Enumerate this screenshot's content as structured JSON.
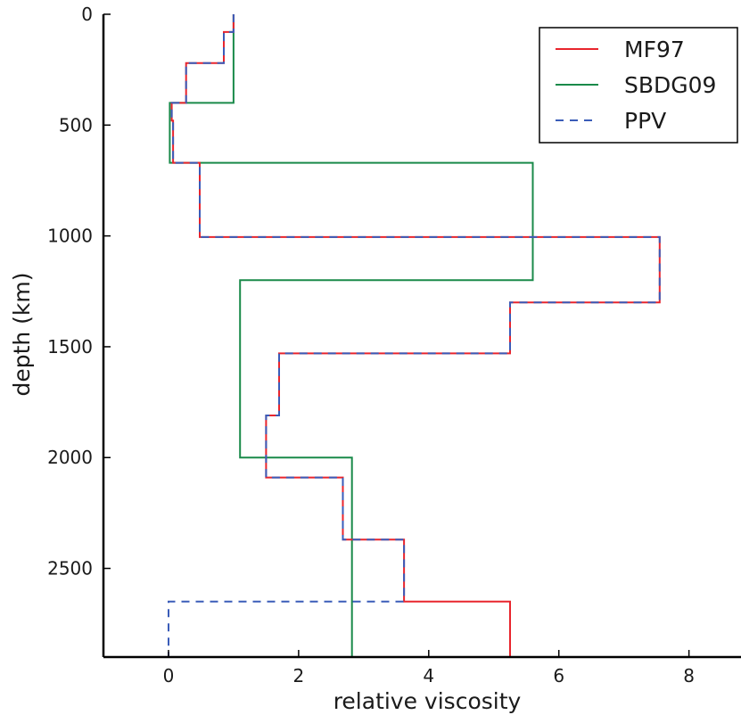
{
  "chart_data": {
    "type": "line",
    "xlabel": "relative viscosity",
    "ylabel": "depth (km)",
    "xlim": [
      -1,
      8.8
    ],
    "ylim": [
      2900,
      0
    ],
    "y_inverted": true,
    "xticks": [
      0,
      2,
      4,
      6,
      8
    ],
    "yticks": [
      0,
      500,
      1000,
      1500,
      2000,
      2500
    ],
    "grid": false,
    "legend": {
      "position": "top-right",
      "entries": [
        "MF97",
        "SBDG09",
        "PPV"
      ]
    },
    "series": [
      {
        "name": "SBDG09",
        "color": "#1a8a4a",
        "style": "solid",
        "points": [
          [
            1.0,
            0
          ],
          [
            1.0,
            400
          ],
          [
            0.02,
            400
          ],
          [
            0.02,
            670
          ],
          [
            5.6,
            670
          ],
          [
            5.6,
            1200
          ],
          [
            1.1,
            1200
          ],
          [
            1.1,
            2000
          ],
          [
            2.82,
            2000
          ],
          [
            2.82,
            2900
          ]
        ]
      },
      {
        "name": "MF97",
        "color": "#e8252d",
        "style": "solid",
        "points": [
          [
            1.0,
            0
          ],
          [
            1.0,
            80
          ],
          [
            0.85,
            80
          ],
          [
            0.85,
            220
          ],
          [
            0.27,
            220
          ],
          [
            0.27,
            400
          ],
          [
            0.05,
            400
          ],
          [
            0.05,
            480
          ],
          [
            0.07,
            480
          ],
          [
            0.07,
            670
          ],
          [
            0.48,
            670
          ],
          [
            0.48,
            1005
          ],
          [
            7.55,
            1005
          ],
          [
            7.55,
            1300
          ],
          [
            5.25,
            1300
          ],
          [
            5.25,
            1530
          ],
          [
            1.7,
            1530
          ],
          [
            1.7,
            1810
          ],
          [
            1.5,
            1810
          ],
          [
            1.5,
            2090
          ],
          [
            2.68,
            2090
          ],
          [
            2.68,
            2370
          ],
          [
            3.62,
            2370
          ],
          [
            3.62,
            2650
          ],
          [
            5.25,
            2650
          ],
          [
            5.25,
            2900
          ]
        ]
      },
      {
        "name": "PPV",
        "color": "#3a5cb8",
        "style": "dashed",
        "points": [
          [
            1.0,
            0
          ],
          [
            1.0,
            80
          ],
          [
            0.85,
            80
          ],
          [
            0.85,
            220
          ],
          [
            0.27,
            220
          ],
          [
            0.27,
            400
          ],
          [
            0.05,
            400
          ],
          [
            0.05,
            480
          ],
          [
            0.07,
            480
          ],
          [
            0.07,
            670
          ],
          [
            0.48,
            670
          ],
          [
            0.48,
            1005
          ],
          [
            7.55,
            1005
          ],
          [
            7.55,
            1300
          ],
          [
            5.25,
            1300
          ],
          [
            5.25,
            1530
          ],
          [
            1.7,
            1530
          ],
          [
            1.7,
            1810
          ],
          [
            1.5,
            1810
          ],
          [
            1.5,
            2090
          ],
          [
            2.68,
            2090
          ],
          [
            2.68,
            2370
          ],
          [
            3.62,
            2370
          ],
          [
            3.62,
            2650
          ],
          [
            0.0,
            2650
          ],
          [
            0.0,
            2900
          ]
        ]
      }
    ]
  }
}
